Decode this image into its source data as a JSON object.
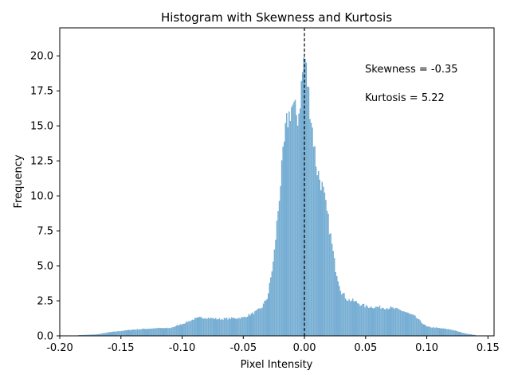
{
  "chart_data": {
    "type": "bar",
    "title": "Histogram with Skewness and Kurtosis",
    "xlabel": "Pixel Intensity",
    "ylabel": "Frequency",
    "xlim": [
      -0.2,
      0.155
    ],
    "ylim": [
      0,
      22
    ],
    "xticks": [
      -0.2,
      -0.15,
      -0.1,
      -0.05,
      0.0,
      0.05,
      0.1,
      0.15
    ],
    "xtick_labels": [
      "-0.20",
      "-0.15",
      "-0.10",
      "-0.05",
      "0.00",
      "0.05",
      "0.10",
      "0.15"
    ],
    "yticks": [
      0,
      2.5,
      5,
      7.5,
      10,
      12.5,
      15,
      17.5,
      20
    ],
    "ytick_labels": [
      "0.0",
      "2.5",
      "5.0",
      "7.5",
      "10.0",
      "12.5",
      "15.0",
      "17.5",
      "20.0"
    ],
    "bar_color": "#77aed3",
    "vline": {
      "x": 0.0,
      "style": "dashed",
      "color": "#000000"
    },
    "annotations": [
      {
        "text": "Skewness = -0.35"
      },
      {
        "text": "Kurtosis = 5.22"
      }
    ],
    "profile": {
      "x": [
        -0.185,
        -0.17,
        -0.16,
        -0.15,
        -0.14,
        -0.13,
        -0.12,
        -0.11,
        -0.1,
        -0.09,
        -0.085,
        -0.08,
        -0.07,
        -0.06,
        -0.05,
        -0.04,
        -0.035,
        -0.03,
        -0.025,
        -0.02,
        -0.015,
        -0.01,
        -0.005,
        0.0,
        0.005,
        0.01,
        0.015,
        0.02,
        0.025,
        0.03,
        0.035,
        0.04,
        0.05,
        0.06,
        0.07,
        0.08,
        0.09,
        0.1,
        0.11,
        0.12,
        0.13,
        0.14
      ],
      "y": [
        0.05,
        0.1,
        0.25,
        0.35,
        0.45,
        0.5,
        0.55,
        0.55,
        0.85,
        1.2,
        1.3,
        1.3,
        1.2,
        1.25,
        1.3,
        1.7,
        2.0,
        2.8,
        5.5,
        10.5,
        15.0,
        16.5,
        15.5,
        20.2,
        16.0,
        12.0,
        10.5,
        8.0,
        5.0,
        3.2,
        2.6,
        2.5,
        2.1,
        2.05,
        2.0,
        1.8,
        1.4,
        0.65,
        0.55,
        0.45,
        0.2,
        0.05
      ]
    },
    "bins": {
      "start": -0.185,
      "end": 0.14,
      "width": 0.001
    }
  }
}
